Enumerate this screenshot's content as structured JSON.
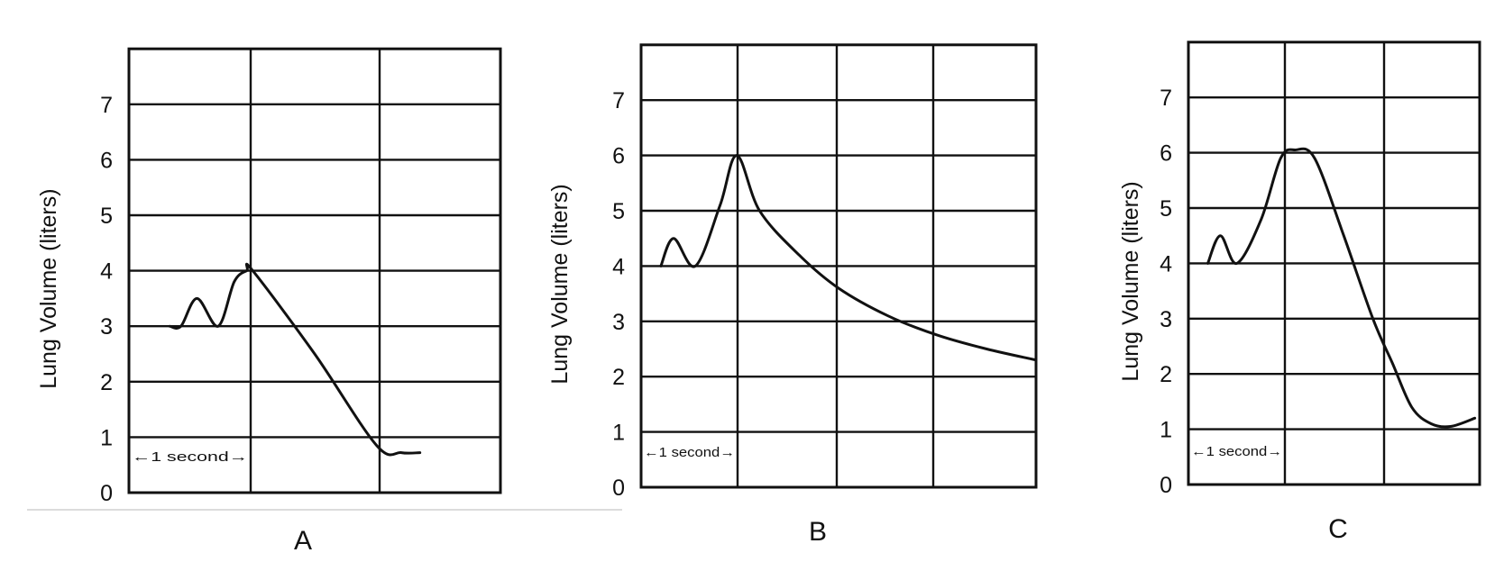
{
  "chart_data": [
    {
      "type": "line",
      "panel_label": "A",
      "ylabel": "Lung Volume (liters)",
      "yticks": [
        "0",
        "1",
        "2",
        "3",
        "4",
        "5",
        "6",
        "7"
      ],
      "ylim": [
        0,
        8
      ],
      "xlim": [
        0,
        3
      ],
      "time_marker": "←1 second→",
      "grid": true,
      "series": [
        {
          "x": [
            0.33,
            0.42,
            0.55,
            0.72,
            0.85,
            0.95,
            1.0,
            1.5,
            2.0,
            2.2,
            2.35
          ],
          "y": [
            3.0,
            3.0,
            3.5,
            3.0,
            3.8,
            4.0,
            4.0,
            2.5,
            0.85,
            0.72,
            0.72
          ]
        }
      ]
    },
    {
      "type": "line",
      "panel_label": "B",
      "ylabel": "Lung Volume (liters)",
      "yticks": [
        "0",
        "1",
        "2",
        "3",
        "4",
        "5",
        "6",
        "7"
      ],
      "ylim": [
        0,
        8
      ],
      "xlim": [
        0,
        4
      ],
      "time_marker": "←1 second→",
      "grid": true,
      "series": [
        {
          "x": [
            0.2,
            0.33,
            0.55,
            0.8,
            0.97,
            1.2,
            1.6,
            2.0,
            2.5,
            3.0,
            3.5,
            4.0
          ],
          "y": [
            4.0,
            4.5,
            4.0,
            5.1,
            6.0,
            5.0,
            4.2,
            3.6,
            3.1,
            2.75,
            2.5,
            2.3
          ]
        }
      ]
    },
    {
      "type": "line",
      "panel_label": "C",
      "ylabel": "Lung Volume (liters)",
      "yticks": [
        "0",
        "1",
        "2",
        "3",
        "4",
        "5",
        "6",
        "7"
      ],
      "ylim": [
        0,
        8
      ],
      "xlim": [
        0,
        3
      ],
      "time_marker": "←1 second→",
      "grid": true,
      "series": [
        {
          "x": [
            0.2,
            0.33,
            0.5,
            0.75,
            0.95,
            1.1,
            1.3,
            1.6,
            1.9,
            2.1,
            2.3,
            2.5,
            2.7,
            2.95
          ],
          "y": [
            4.0,
            4.5,
            4.0,
            4.8,
            5.9,
            6.05,
            5.9,
            4.5,
            3.0,
            2.2,
            1.4,
            1.1,
            1.05,
            1.2
          ]
        }
      ]
    }
  ]
}
